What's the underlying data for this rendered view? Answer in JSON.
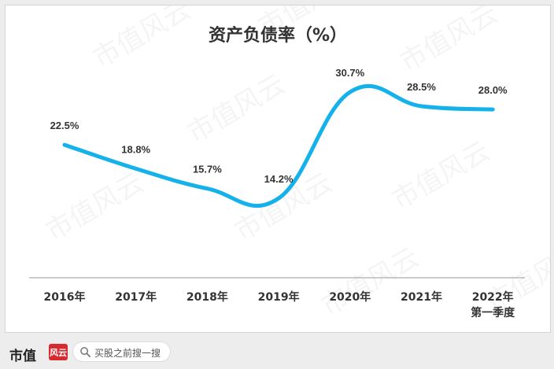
{
  "chart_data": {
    "type": "line",
    "title": "资产负债率（%）",
    "categories": [
      "2016年",
      "2017年",
      "2018年",
      "2019年",
      "2020年",
      "2021年",
      "2022年第一季度"
    ],
    "category_labels": [
      [
        "2016年"
      ],
      [
        "2017年"
      ],
      [
        "2018年"
      ],
      [
        "2019年"
      ],
      [
        "2020年"
      ],
      [
        "2021年"
      ],
      [
        "2022年",
        "第一季度"
      ]
    ],
    "values": [
      22.5,
      18.8,
      15.7,
      14.2,
      30.7,
      28.5,
      28.0
    ],
    "value_labels": [
      "22.5%",
      "18.8%",
      "15.7%",
      "14.2%",
      "30.7%",
      "28.5%",
      "28.0%"
    ],
    "series_color": "#14b1ea",
    "smooth": true,
    "grid": false,
    "legend": "none"
  },
  "watermark": "市值风云",
  "footer": {
    "brand": "市值",
    "brand_seal": "风云",
    "search_placeholder": "买股之前搜一搜",
    "search_icon": "search-icon"
  }
}
